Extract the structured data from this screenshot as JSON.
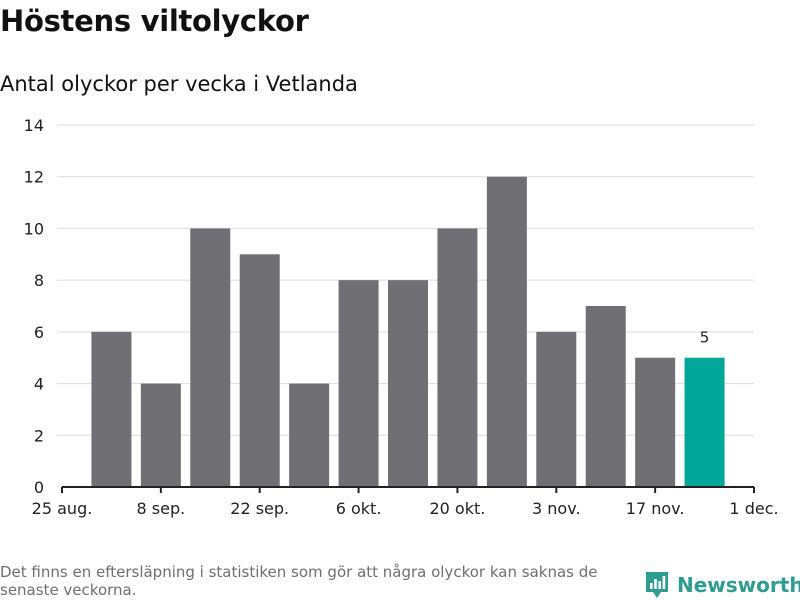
{
  "title": "Höstens viltolyckor",
  "subtitle": "Antal olyckor per vecka i Vetlanda",
  "footnote": "Det finns en eftersläpning i statistiken som gör att några olyckor kan saknas de senaste veckorna.",
  "brand": {
    "name": "Newsworthy",
    "icon": "newsworthy-logo-icon",
    "color": "#2f9c92"
  },
  "colors": {
    "bar": "#706f74",
    "highlight": "#00a69a",
    "grid": "#dcdcdc",
    "axis": "#222222"
  },
  "chart_data": {
    "type": "bar",
    "title": "Antal olyckor per vecka i Vetlanda",
    "xlabel": "",
    "ylabel": "",
    "ylim": [
      0,
      14
    ],
    "yticks": [
      0,
      2,
      4,
      6,
      8,
      10,
      12,
      14
    ],
    "xticks": [
      "25 aug.",
      "8 sep.",
      "22 sep.",
      "6 okt.",
      "20 okt.",
      "3 nov.",
      "17 nov.",
      "1 dec."
    ],
    "weeks_from_first_tick": [
      1,
      2,
      3,
      4,
      5,
      6,
      7,
      8,
      9,
      10,
      11,
      12,
      13
    ],
    "values": [
      6,
      4,
      10,
      9,
      4,
      8,
      8,
      10,
      12,
      6,
      7,
      5,
      5
    ],
    "highlight_index": 12,
    "data_labels": [
      {
        "index": 12,
        "text": "5"
      }
    ],
    "grid": true
  }
}
